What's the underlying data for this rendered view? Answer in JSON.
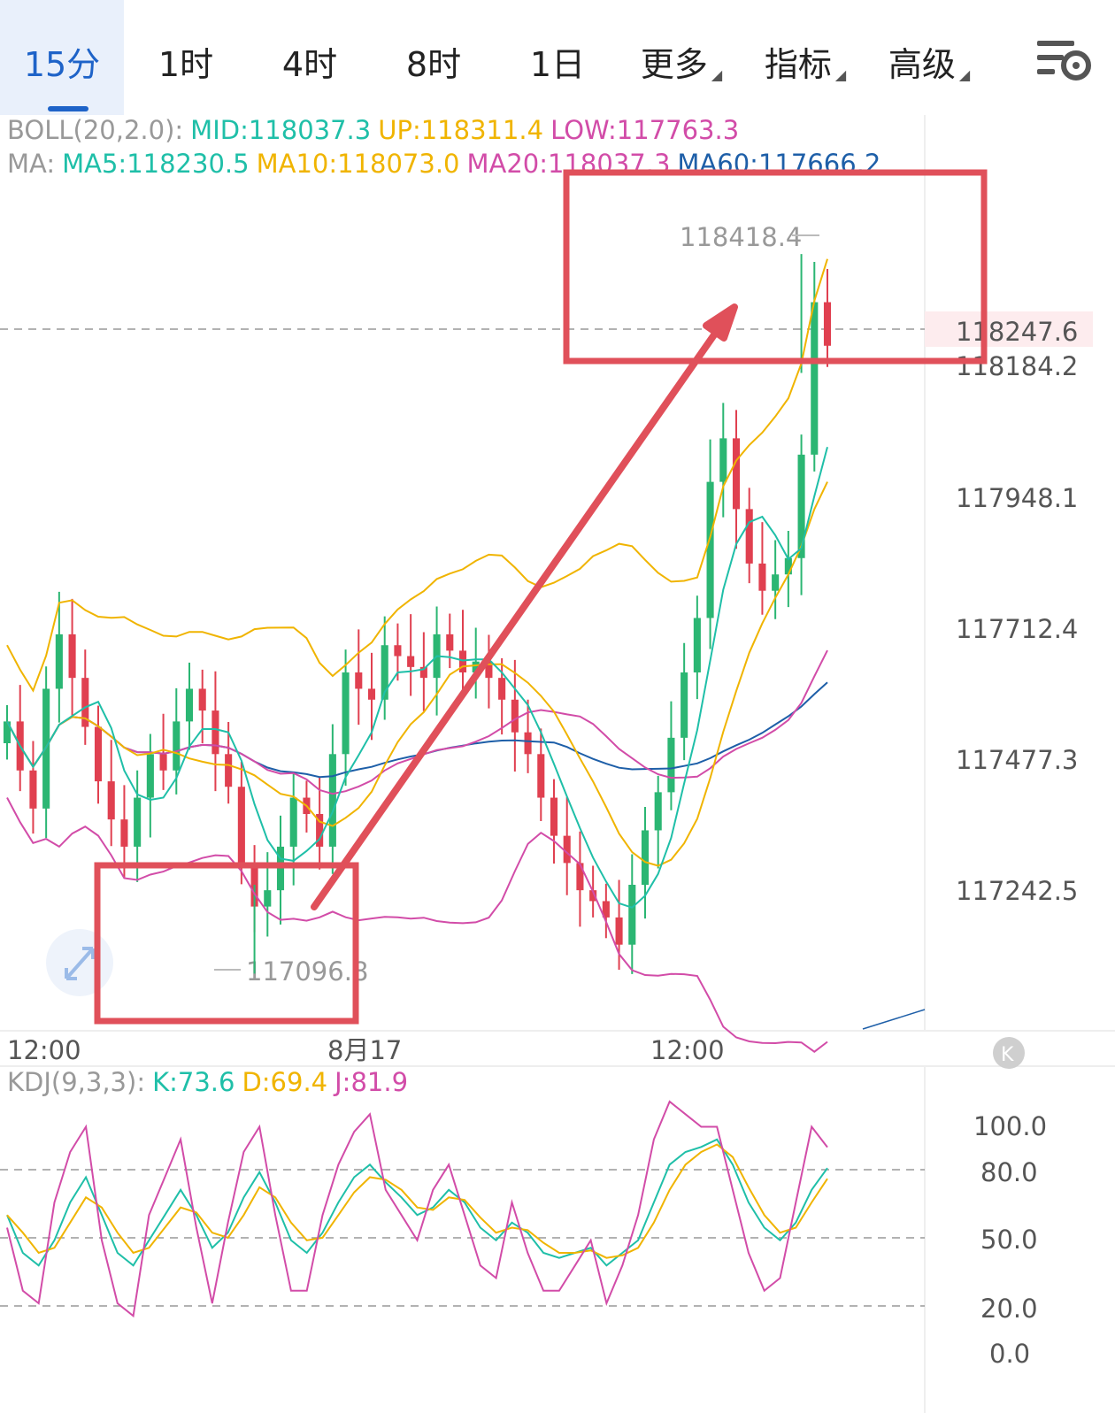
{
  "tabs": [
    {
      "label": "15分",
      "active": true
    },
    {
      "label": "1时"
    },
    {
      "label": "4时"
    },
    {
      "label": "8时"
    },
    {
      "label": "1日"
    },
    {
      "label": "更多",
      "dropdown": true
    },
    {
      "label": "指标",
      "dropdown": true
    },
    {
      "label": "高级",
      "dropdown": true
    }
  ],
  "settings_icon": "chart-settings-icon",
  "colors": {
    "accent": "#1e63c8",
    "up": "#2bb673",
    "down": "#e04050",
    "mid": "#1fbfa8",
    "upper": "#f0b400",
    "lower": "#d24ca8",
    "ma60": "#1e5fa8",
    "annotation": "#e0505a"
  },
  "boll_legend": {
    "name": "BOLL(20,2.0):",
    "mid": "MID:118037.3",
    "up": "UP:118311.4",
    "low": "LOW:117763.3"
  },
  "ma_legend": {
    "name": "MA:",
    "ma5": "MA5:118230.5",
    "ma10": "MA10:118073.0",
    "ma20": "MA20:118037.3",
    "ma60": "MA60:117666.2"
  },
  "kdj_legend": {
    "name": "KDJ(9,3,3):",
    "k": "K:73.6",
    "d": "D:69.4",
    "j": "J:81.9"
  },
  "price_axis": [
    "117948.1",
    "117712.4",
    "117477.3",
    "117242.5"
  ],
  "current_price": "118247.6",
  "extra_price": "118184.2",
  "high_marker": "118418.4",
  "low_marker": "117096.8",
  "time_axis": [
    "12:00",
    "8月17",
    "12:00"
  ],
  "kdj_axis": [
    "100.0",
    "80.0",
    "50.0",
    "20.0",
    "0.0"
  ],
  "chart_data": [
    {
      "type": "candlestick",
      "interval": "15分",
      "ylim": [
        117000,
        118560
      ],
      "x_ticks": [
        "12:00",
        "8月17",
        "12:00"
      ],
      "highlight_high": 118418.4,
      "highlight_low": 117096.8,
      "last_price": 118247.6,
      "upper_band_end": 118311.4,
      "mid_band_end": 118037.3,
      "lower_band_end": 117763.3,
      "closes": [
        117560,
        117470,
        117400,
        117620,
        117720,
        117640,
        117550,
        117450,
        117380,
        117330,
        117420,
        117500,
        117470,
        117560,
        117620,
        117580,
        117500,
        117440,
        117300,
        117220,
        117250,
        117330,
        117420,
        117390,
        117330,
        117500,
        117650,
        117620,
        117600,
        117700,
        117680,
        117660,
        117640,
        117720,
        117690,
        117650,
        117670,
        117640,
        117600,
        117540,
        117500,
        117420,
        117350,
        117300,
        117250,
        117230,
        117200,
        117150,
        117260,
        117360,
        117430,
        117530,
        117650,
        117750,
        118000,
        118080,
        117950,
        117850,
        117800,
        117830,
        117860,
        118050,
        118330,
        118250
      ]
    },
    {
      "type": "line",
      "name": "KDJ",
      "ylim": [
        0,
        100
      ],
      "series": [
        {
          "name": "K",
          "values": [
            55,
            40,
            35,
            45,
            60,
            70,
            55,
            40,
            35,
            45,
            55,
            65,
            55,
            42,
            48,
            62,
            72,
            60,
            45,
            40,
            48,
            60,
            70,
            75,
            68,
            62,
            55,
            58,
            65,
            60,
            50,
            45,
            52,
            48,
            40,
            38,
            40,
            42,
            35,
            40,
            45,
            60,
            75,
            80,
            82,
            85,
            75,
            60,
            50,
            45,
            52,
            65,
            73.6
          ]
        },
        {
          "name": "D",
          "values": [
            55,
            48,
            40,
            42,
            52,
            62,
            58,
            48,
            40,
            42,
            50,
            58,
            56,
            48,
            46,
            55,
            66,
            62,
            52,
            45,
            46,
            55,
            64,
            70,
            69,
            65,
            58,
            57,
            62,
            61,
            54,
            48,
            50,
            49,
            44,
            40,
            40,
            41,
            38,
            39,
            42,
            52,
            65,
            75,
            80,
            83,
            78,
            66,
            55,
            48,
            50,
            60,
            69.4
          ]
        },
        {
          "name": "J",
          "values": [
            50,
            25,
            20,
            60,
            80,
            90,
            45,
            20,
            15,
            55,
            70,
            85,
            50,
            20,
            52,
            80,
            90,
            55,
            25,
            25,
            55,
            75,
            88,
            95,
            65,
            55,
            45,
            65,
            75,
            55,
            35,
            30,
            60,
            40,
            25,
            25,
            35,
            45,
            20,
            35,
            55,
            85,
            100,
            95,
            90,
            90,
            65,
            40,
            25,
            30,
            60,
            90,
            81.9
          ]
        }
      ]
    }
  ]
}
